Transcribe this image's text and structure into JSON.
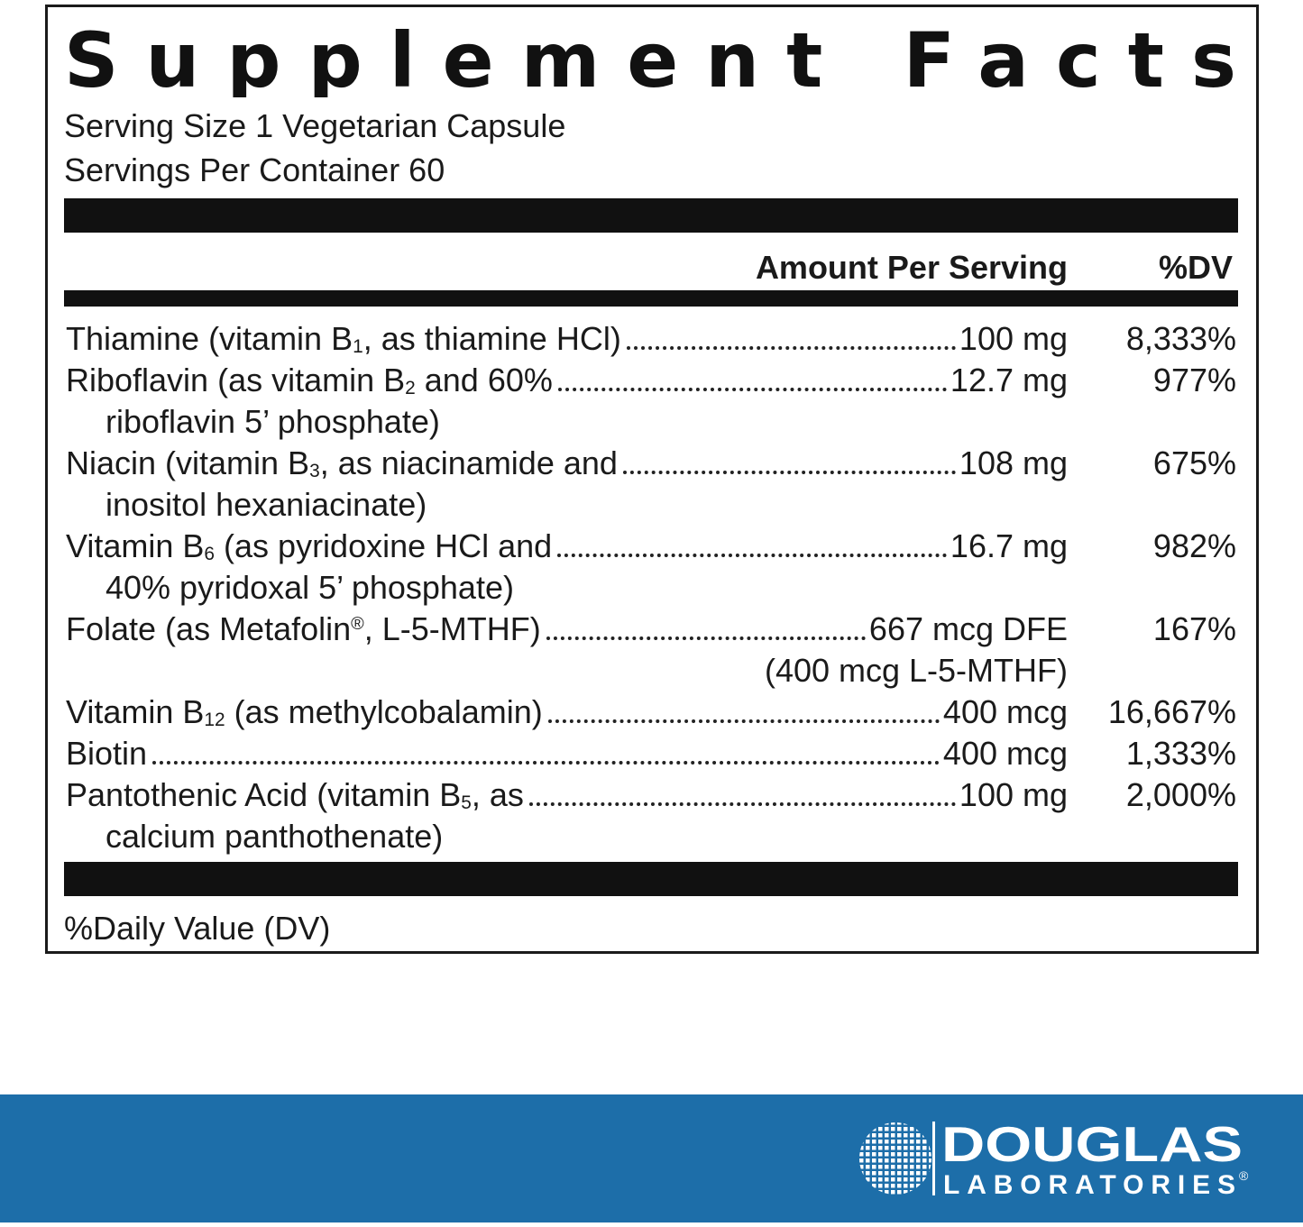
{
  "title": "Supplement Facts",
  "serving_size": "Serving Size 1 Vegetarian Capsule",
  "servings_per_container": "Servings Per Container 60",
  "header": {
    "amount": "Amount Per Serving",
    "dv": "%DV"
  },
  "rows": [
    {
      "name": [
        {
          "t": "Thiamine (vitamin B"
        },
        {
          "sub": "1"
        },
        {
          "t": ", as thiamine HCl)"
        }
      ],
      "amount": "100 mg",
      "dv": "8,333%"
    },
    {
      "name": [
        {
          "t": "Riboflavin (as vitamin B"
        },
        {
          "sub": "2"
        },
        {
          "t": " and 60%"
        }
      ],
      "name_cont": "riboflavin 5’ phosphate)",
      "amount": "12.7 mg",
      "dv": "977%"
    },
    {
      "name": [
        {
          "t": "Niacin (vitamin B"
        },
        {
          "sub": "3"
        },
        {
          "t": ", as niacinamide and"
        }
      ],
      "name_cont": "inositol hexaniacinate)",
      "amount": "108 mg",
      "dv": "675%"
    },
    {
      "name": [
        {
          "t": "Vitamin B"
        },
        {
          "sub": "6"
        },
        {
          "t": " (as pyridoxine HCl and"
        }
      ],
      "name_cont": "40% pyridoxal 5’ phosphate)",
      "amount": "16.7 mg",
      "dv": "982%"
    },
    {
      "name": [
        {
          "t": "Folate (as Metafolin"
        },
        {
          "sup": "®"
        },
        {
          "t": ", L-5-MTHF)"
        }
      ],
      "amount": "667 mcg DFE",
      "amount_cont": "(400 mcg L-5-MTHF)",
      "dv": "167%"
    },
    {
      "name": [
        {
          "t": "Vitamin B"
        },
        {
          "sub": "12"
        },
        {
          "t": " (as methylcobalamin)"
        }
      ],
      "amount": "400 mcg",
      "dv": "16,667%"
    },
    {
      "name": [
        {
          "t": "Biotin"
        }
      ],
      "amount": "400 mcg",
      "dv": "1,333%"
    },
    {
      "name": [
        {
          "t": "Pantothenic Acid (vitamin B"
        },
        {
          "sub": "5"
        },
        {
          "t": ", as"
        }
      ],
      "name_cont": "calcium panthothenate)",
      "amount": "100 mg",
      "dv": "2,000%"
    }
  ],
  "footnote": "%Daily Value (DV)",
  "brand": {
    "name": "DOUGLAS",
    "sub": "LABORATORIES",
    "mark": "®"
  }
}
